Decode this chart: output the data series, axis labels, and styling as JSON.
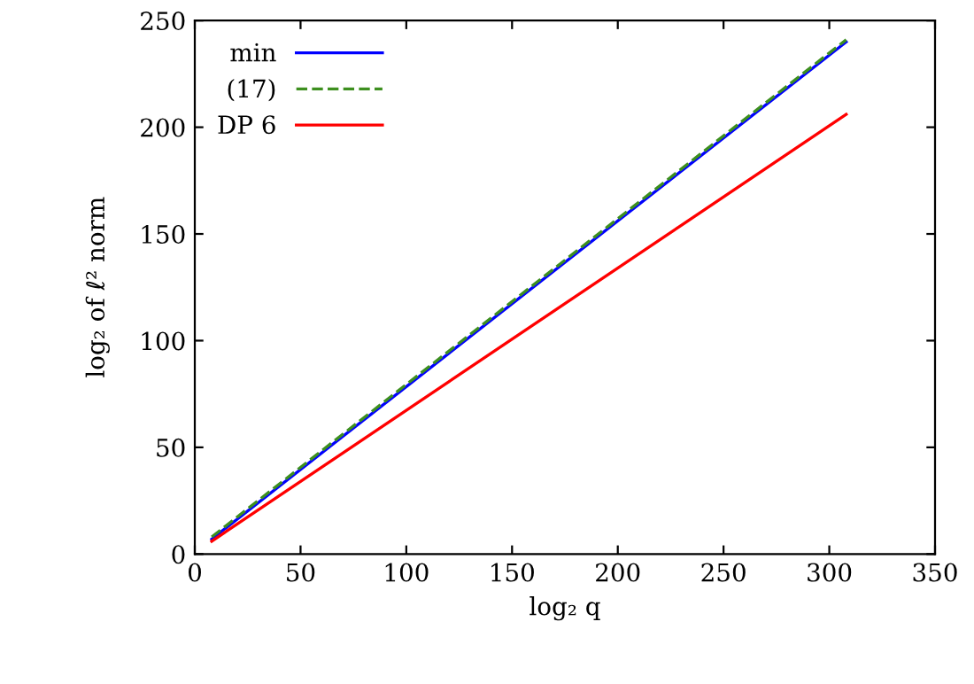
{
  "chart_data": {
    "type": "line",
    "xlabel": "log₂ q",
    "ylabel": "log₂ of ℓ² norm",
    "x": [
      8,
      308
    ],
    "series": [
      {
        "name": "min",
        "color": "#0000ff",
        "values": [
          7,
          240
        ],
        "line_style": "solid"
      },
      {
        "name": "(17)",
        "color": "#3d8f1f",
        "values": [
          8,
          241
        ],
        "line_style": "dashed"
      },
      {
        "name": "DP 6",
        "color": "#ff0000",
        "values": [
          6,
          206
        ],
        "line_style": "solid"
      }
    ],
    "xlim": [
      0,
      350
    ],
    "xticks": [
      0,
      50,
      100,
      150,
      200,
      250,
      300,
      350
    ],
    "ylim": [
      0,
      250
    ],
    "yticks": [
      0,
      50,
      100,
      150,
      200,
      250
    ],
    "grid": false,
    "legend": "top left",
    "marker": "none"
  }
}
